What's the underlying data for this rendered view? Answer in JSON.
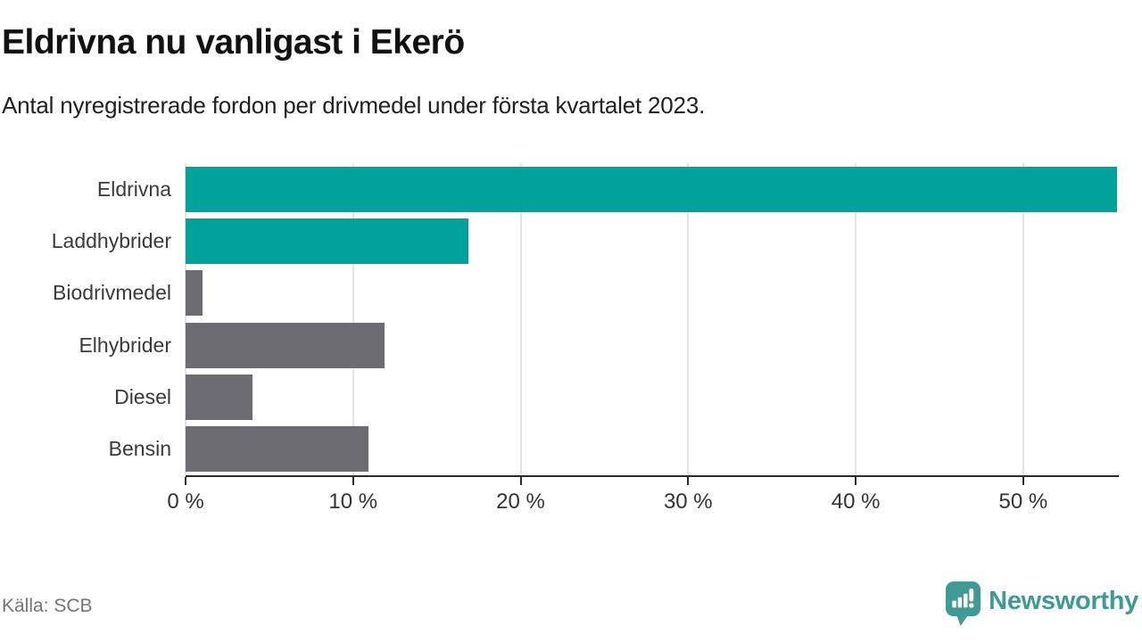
{
  "header": {
    "title": "Eldrivna nu vanligast i Ekerö",
    "subtitle": "Antal nyregistrerade fordon per drivmedel under första kvartalet 2023."
  },
  "chart_data": {
    "type": "bar",
    "orientation": "horizontal",
    "title": "Eldrivna nu vanligast i Ekerö",
    "subtitle": "Antal nyregistrerade fordon per drivmedel under första kvartalet 2023.",
    "categories": [
      "Eldrivna",
      "Laddhybrider",
      "Biodrivmedel",
      "Elhybrider",
      "Diesel",
      "Bensin"
    ],
    "values": [
      55.6,
      16.9,
      1.0,
      11.9,
      4.0,
      10.9
    ],
    "unit": "%",
    "bar_colors": [
      "#00a29b",
      "#00a29b",
      "#6c6b72",
      "#6c6b72",
      "#6c6b72",
      "#6c6b72"
    ],
    "x_ticks": [
      "0 %",
      "10 %",
      "20 %",
      "30 %",
      "40 %",
      "50 %"
    ],
    "x_tick_values": [
      0,
      10,
      20,
      30,
      40,
      50
    ],
    "xlim": [
      0,
      55.6
    ],
    "xlabel": "",
    "ylabel": "",
    "grid": "vertical-only",
    "legend": "none"
  },
  "footer": {
    "source": "Källa: SCB",
    "brand": "Newsworthy"
  },
  "colors": {
    "accent_teal": "#00a29b",
    "bar_gray": "#6c6b72",
    "logo_teal": "#3e9a94",
    "gridline": "#e4e3e7",
    "axis": "#2b2b2b",
    "text_dark": "#111111",
    "text_muted": "#757479"
  }
}
